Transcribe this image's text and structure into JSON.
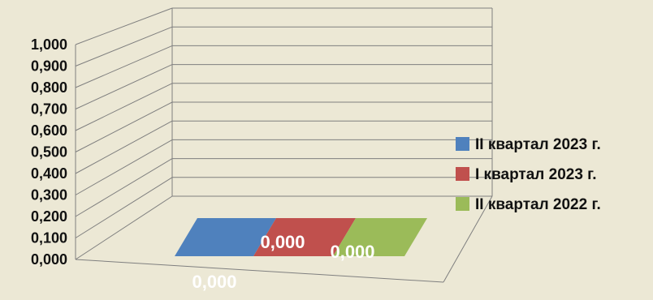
{
  "chart_data": {
    "type": "bar",
    "title": "",
    "xlabel": "",
    "ylabel": "",
    "ylim": [
      0,
      1
    ],
    "y_ticks": [
      "0,000",
      "0,100",
      "0,200",
      "0,300",
      "0,400",
      "0,500",
      "0,600",
      "0,700",
      "0,800",
      "0,900",
      "1,000"
    ],
    "grid": true,
    "legend": "right",
    "series": [
      {
        "name": "II квартал 2023 г.",
        "values": [
          0
        ],
        "label": "0,000",
        "color": "#4f81bd"
      },
      {
        "name": "I квартал 2023 г.",
        "values": [
          0
        ],
        "label": "0,000",
        "color": "#c0504d"
      },
      {
        "name": "II квартал 2022 г.",
        "values": [
          0
        ],
        "label": "0,000",
        "color": "#9bbb59"
      }
    ]
  }
}
